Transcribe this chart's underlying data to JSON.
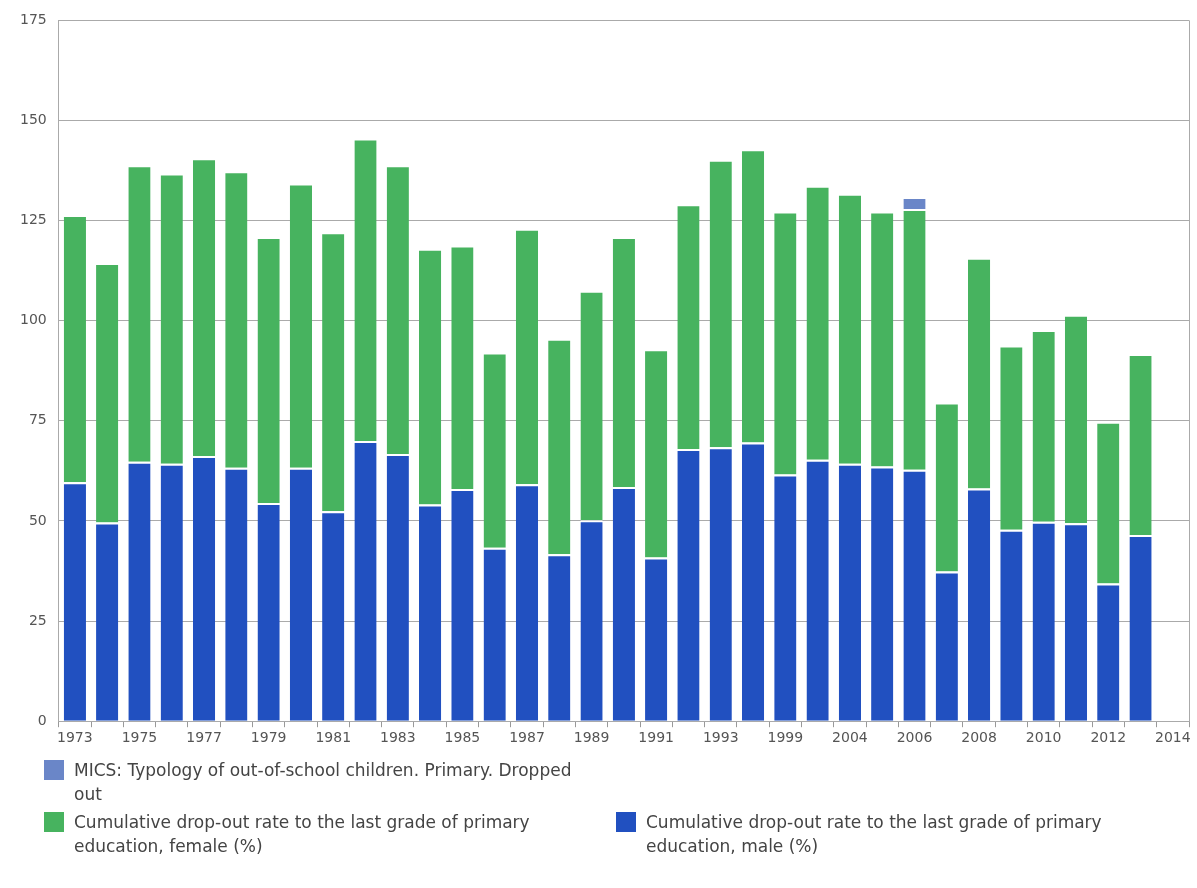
{
  "chart_data": {
    "type": "bar",
    "stacked": true,
    "categories": [
      "1973",
      null,
      "1975",
      null,
      "1977",
      null,
      "1979",
      null,
      "1981",
      null,
      "1983",
      null,
      "1985",
      null,
      "1987",
      null,
      "1989",
      null,
      "1991",
      null,
      "1993",
      null,
      "1999",
      null,
      "2004",
      null,
      "2006",
      null,
      "2008",
      null,
      "2010",
      null,
      "2012",
      null,
      "2014"
    ],
    "series": [
      {
        "name": "Cumulative drop-out rate to the last grade of primary education, male (%)",
        "color": "#2150c0",
        "values": [
          59.7,
          49.6,
          64.8,
          64.3,
          66.2,
          63.3,
          54.5,
          63.3,
          52.4,
          70.0,
          66.7,
          54.1,
          58.0,
          43.3,
          59.2,
          41.7,
          50.2,
          58.5,
          40.9,
          68.0,
          68.4,
          69.6,
          61.6,
          65.3,
          64.3,
          63.6,
          62.8,
          37.4,
          58.1,
          47.8,
          49.8,
          49.4,
          34.4,
          46.5,
          null
        ]
      },
      {
        "name": "Cumulative drop-out rate to the last grade of primary education, female (%)",
        "color": "#47b35f",
        "values": [
          66.7,
          64.8,
          74.0,
          72.5,
          74.4,
          74.0,
          66.4,
          71.0,
          69.7,
          75.5,
          72.1,
          63.9,
          60.8,
          48.8,
          63.8,
          53.8,
          57.3,
          62.4,
          52.0,
          61.1,
          71.8,
          73.2,
          65.7,
          68.4,
          67.4,
          63.7,
          65.1,
          42.2,
          57.6,
          46.0,
          47.9,
          52.1,
          40.4,
          45.2,
          null
        ]
      },
      {
        "name": "MICS: Typology of out-of-school children. Primary. Dropped out",
        "color": "#6a86c8",
        "values": [
          null,
          null,
          null,
          null,
          null,
          null,
          null,
          null,
          null,
          null,
          null,
          null,
          null,
          null,
          null,
          null,
          null,
          null,
          null,
          null,
          null,
          null,
          null,
          null,
          null,
          null,
          3,
          null,
          null,
          null,
          null,
          null,
          null,
          null,
          null
        ]
      }
    ],
    "ylim": [
      0,
      175
    ],
    "yticks": [
      0,
      25,
      50,
      75,
      100,
      125,
      150,
      175
    ],
    "grid": "y",
    "legend": "bottom"
  }
}
